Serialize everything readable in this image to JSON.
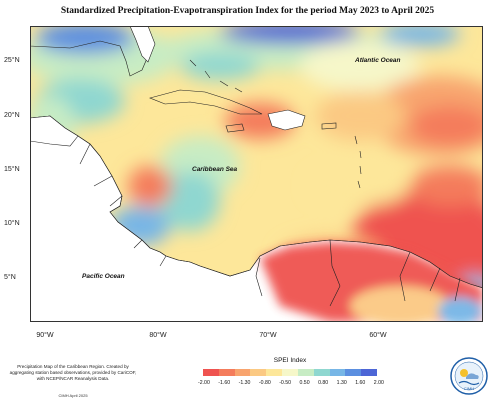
{
  "title": "Standardized Precipitation-Evapotranspiration Index for the period May 2023 to April 2025",
  "map": {
    "lat_labels": [
      "25°N",
      "20°N",
      "15°N",
      "10°N",
      "5°N"
    ],
    "lon_labels": [
      "90°W",
      "80°W",
      "70°W",
      "60°W"
    ],
    "place_labels": {
      "atlantic": "Atlantic Ocean",
      "caribbean": "Caribbean Sea",
      "pacific": "Pacific Ocean"
    }
  },
  "legend": {
    "title": "SPEI Index",
    "ticks": [
      "-2.00",
      "-1.60",
      "-1.30",
      "-0.80",
      "-0.50",
      "0.50",
      "0.80",
      "1.30",
      "1.60",
      "2.00"
    ],
    "colors": [
      "#ef5350",
      "#f47c5c",
      "#f8a46e",
      "#fbc983",
      "#fde79a",
      "#f6f7c9",
      "#c7ecc4",
      "#8fd7d0",
      "#77b6e6",
      "#5b8fe0",
      "#4d66d6"
    ]
  },
  "footer": {
    "note": "Precipitation Map of the Caribbean Region. Created by aggregating station based observations, provided by CariCOF, with NCEP/NCAR Reanalysis Data.",
    "date": "CIMH April 2025"
  },
  "logo": {
    "text": "CIMH",
    "icon": "cimh-logo-icon"
  }
}
